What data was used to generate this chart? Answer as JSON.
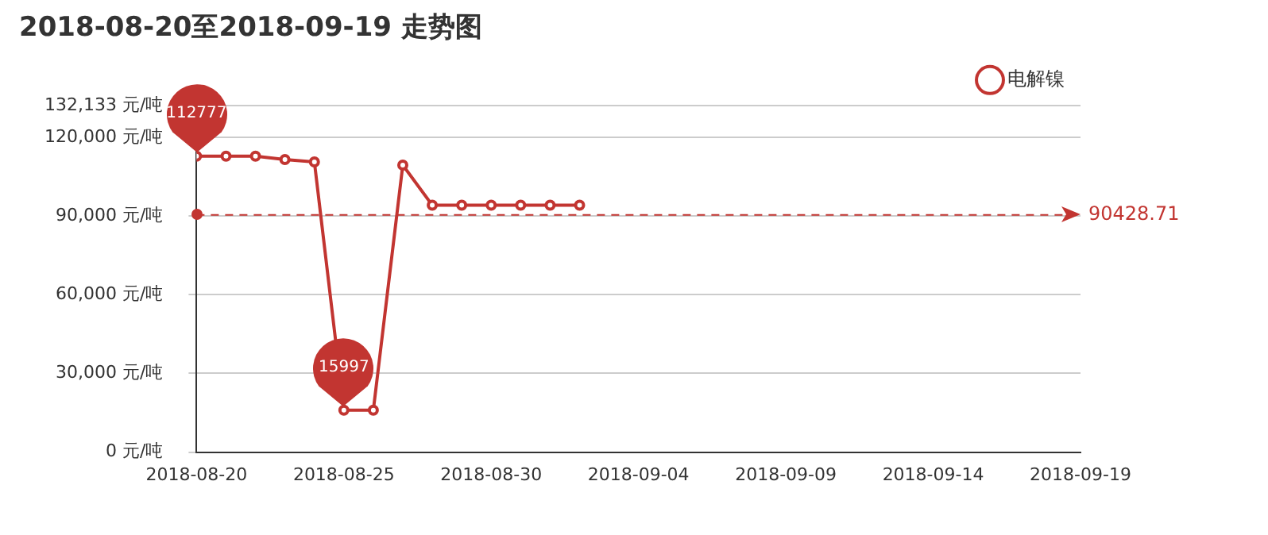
{
  "chart_data": {
    "type": "line",
    "title": "2018-08-20至2018-09-19 走势图",
    "x": [
      "2018-08-20",
      "2018-08-21",
      "2018-08-22",
      "2018-08-23",
      "2018-08-24",
      "2018-08-25",
      "2018-08-26",
      "2018-08-27",
      "2018-08-28",
      "2018-08-29",
      "2018-08-30",
      "2018-08-31",
      "2018-09-01",
      "2018-09-02"
    ],
    "series": [
      {
        "name": "电解镍",
        "color": "#c23531",
        "values": [
          112777,
          112777,
          112777,
          111500,
          110600,
          15997,
          15997,
          109400,
          94100,
          94100,
          94100,
          94100,
          94100,
          94100
        ]
      }
    ],
    "xlim": [
      "2018-08-20",
      "2018-09-19"
    ],
    "xticks": [
      {
        "value": "2018-08-20",
        "label": "2018-08-20"
      },
      {
        "value": "2018-08-25",
        "label": "2018-08-25"
      },
      {
        "value": "2018-08-30",
        "label": "2018-08-30"
      },
      {
        "value": "2018-09-04",
        "label": "2018-09-04"
      },
      {
        "value": "2018-09-09",
        "label": "2018-09-09"
      },
      {
        "value": "2018-09-14",
        "label": "2018-09-14"
      },
      {
        "value": "2018-09-19",
        "label": "2018-09-19"
      }
    ],
    "ylim": [
      0,
      132133
    ],
    "yticks": [
      {
        "value": 0,
        "label": "0 元/吨"
      },
      {
        "value": 30000,
        "label": "30,000 元/吨"
      },
      {
        "value": 60000,
        "label": "60,000 元/吨"
      },
      {
        "value": 90000,
        "label": "90,000 元/吨"
      },
      {
        "value": 120000,
        "label": "120,000 元/吨"
      },
      {
        "value": 132133,
        "label": "132,133 元/吨"
      }
    ],
    "ref_lines": [
      {
        "axis": "y",
        "value": 90428.71,
        "label": "90428.71",
        "color": "#c23531",
        "line_style": "dashed"
      }
    ],
    "annotations": [
      {
        "text": "112777",
        "x": "2018-08-20",
        "y": 112777
      },
      {
        "text": "15997",
        "x": "2018-08-25",
        "y": 15997
      }
    ],
    "grid": "y",
    "legend": "top right",
    "marker": "circle",
    "line_style": "solid"
  }
}
